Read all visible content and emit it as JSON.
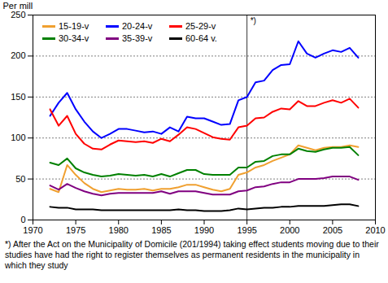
{
  "chart_data": {
    "type": "line",
    "y_label": "Per mill",
    "x": [
      1972,
      1973,
      1974,
      1975,
      1976,
      1977,
      1978,
      1979,
      1980,
      1981,
      1982,
      1983,
      1984,
      1985,
      1986,
      1987,
      1988,
      1989,
      1990,
      1991,
      1992,
      1993,
      1994,
      1995,
      1996,
      1997,
      1998,
      1999,
      2000,
      2001,
      2002,
      2003,
      2004,
      2005,
      2006,
      2007,
      2008
    ],
    "series": [
      {
        "name": "15-19-v",
        "color": "#f0a030",
        "values": [
          38,
          34,
          67,
          55,
          45,
          38,
          34,
          36,
          38,
          37,
          37,
          38,
          36,
          38,
          38,
          40,
          43,
          43,
          40,
          37,
          35,
          38,
          55,
          58,
          64,
          67,
          72,
          76,
          80,
          91,
          88,
          85,
          88,
          89,
          89,
          91,
          89
        ]
      },
      {
        "name": "20-24-v",
        "color": "#0000ff",
        "values": [
          127,
          143,
          155,
          135,
          120,
          108,
          100,
          105,
          111,
          111,
          109,
          107,
          108,
          105,
          113,
          108,
          126,
          124,
          124,
          120,
          116,
          117,
          146,
          150,
          168,
          170,
          183,
          189,
          190,
          218,
          203,
          198,
          203,
          207,
          205,
          210,
          198
        ]
      },
      {
        "name": "25-29-v",
        "color": "#ff0000",
        "values": [
          135,
          115,
          127,
          105,
          93,
          87,
          86,
          92,
          97,
          96,
          95,
          96,
          94,
          99,
          96,
          104,
          113,
          111,
          106,
          101,
          99,
          98,
          113,
          115,
          124,
          125,
          132,
          136,
          135,
          145,
          139,
          139,
          143,
          146,
          143,
          148,
          137
        ]
      },
      {
        "name": "30-34-v",
        "color": "#008000",
        "values": [
          70,
          67,
          75,
          63,
          58,
          55,
          53,
          54,
          56,
          55,
          54,
          55,
          53,
          56,
          53,
          57,
          61,
          61,
          56,
          55,
          55,
          55,
          64,
          64,
          71,
          72,
          78,
          80,
          80,
          87,
          84,
          83,
          86,
          88,
          88,
          89,
          79
        ]
      },
      {
        "name": "35-39-v",
        "color": "#800080",
        "values": [
          42,
          37,
          44,
          39,
          35,
          32,
          30,
          32,
          33,
          33,
          33,
          33,
          33,
          35,
          32,
          35,
          35,
          35,
          33,
          31,
          31,
          31,
          35,
          36,
          40,
          41,
          44,
          46,
          46,
          50,
          50,
          50,
          51,
          53,
          53,
          53,
          49
        ]
      },
      {
        "name": "60-64 v.",
        "color": "#000000",
        "values": [
          16,
          15,
          15,
          13,
          13,
          13,
          12,
          12,
          12,
          12,
          12,
          12,
          12,
          12,
          12,
          13,
          12,
          12,
          11,
          11,
          11,
          12,
          14,
          13,
          14,
          15,
          15,
          16,
          16,
          17,
          17,
          17,
          17,
          18,
          19,
          19,
          17
        ]
      }
    ],
    "xlim": [
      1970,
      2010
    ],
    "xticks": [
      1970,
      1975,
      1980,
      1985,
      1990,
      1995,
      2000,
      2005,
      2010
    ],
    "ylim": [
      0,
      250
    ],
    "yticks": [
      0,
      50,
      100,
      150,
      200,
      250
    ],
    "grid": true,
    "legend": "top-left",
    "annotations": [
      {
        "x": 1995,
        "text": "*)"
      }
    ],
    "caption": "*) After the Act on the Municipality of Domicile (201/1994) taking effect students moving due to their studies have had the right to register themselves as permanent residents in the municipality in which they study"
  }
}
